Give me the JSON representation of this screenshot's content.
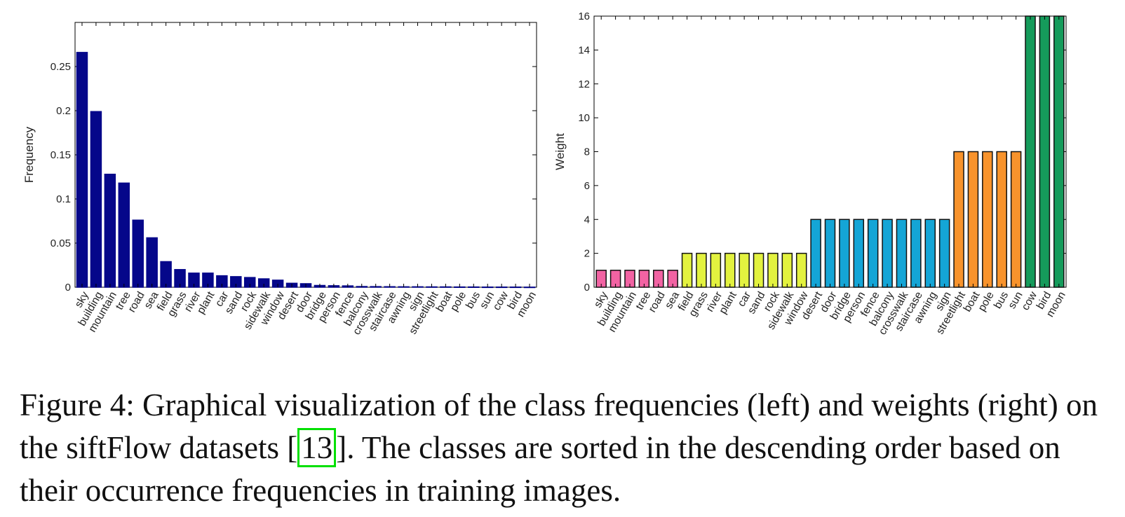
{
  "chart_data": [
    {
      "type": "bar",
      "ylabel": "Frequency",
      "xlabel": "",
      "ylim": [
        0,
        0.3
      ],
      "yticks": [
        0,
        0.05,
        0.1,
        0.15,
        0.2,
        0.25
      ],
      "ytick_labels": [
        "0",
        "0.05",
        "0.1",
        "0.15",
        "0.2",
        "0.25"
      ],
      "categories": [
        "sky",
        "building",
        "mountain",
        "tree",
        "road",
        "sea",
        "field",
        "grass",
        "river",
        "plant",
        "car",
        "sand",
        "rock",
        "sidewalk",
        "window",
        "desert",
        "door",
        "bridge",
        "person",
        "fence",
        "balcony",
        "crosswalk",
        "staircase",
        "awning",
        "sign",
        "streetlight",
        "boat",
        "pole",
        "bus",
        "sun",
        "cow",
        "bird",
        "moon"
      ],
      "values": [
        0.266,
        0.199,
        0.128,
        0.118,
        0.076,
        0.056,
        0.029,
        0.02,
        0.016,
        0.016,
        0.013,
        0.012,
        0.011,
        0.0095,
        0.008,
        0.0045,
        0.004,
        0.002,
        0.0017,
        0.0015,
        0.0008,
        0.0007,
        0.0006,
        0.0005,
        0.0005,
        0.0004,
        0.0004,
        0.0003,
        0.0003,
        0.0002,
        0.0002,
        0.0002,
        0.0001
      ],
      "colors": [
        "#05078a"
      ]
    },
    {
      "type": "bar",
      "ylabel": "Weight",
      "xlabel": "",
      "ylim": [
        0,
        16
      ],
      "yticks": [
        0,
        2,
        4,
        6,
        8,
        10,
        12,
        14,
        16
      ],
      "ytick_labels": [
        "0",
        "2",
        "4",
        "6",
        "8",
        "10",
        "12",
        "14",
        "16"
      ],
      "categories": [
        "sky",
        "building",
        "mountain",
        "tree",
        "road",
        "sea",
        "field",
        "grass",
        "river",
        "plant",
        "car",
        "sand",
        "rock",
        "sidewalk",
        "window",
        "desert",
        "door",
        "bridge",
        "person",
        "fence",
        "balcony",
        "crosswalk",
        "staircase",
        "awning",
        "sign",
        "streetlight",
        "boat",
        "pole",
        "bus",
        "sun",
        "cow",
        "bird",
        "moon"
      ],
      "values": [
        1,
        1,
        1,
        1,
        1,
        1,
        2,
        2,
        2,
        2,
        2,
        2,
        2,
        2,
        2,
        4,
        4,
        4,
        4,
        4,
        4,
        4,
        4,
        4,
        4,
        8,
        8,
        8,
        8,
        8,
        16,
        16,
        16
      ],
      "colors": [
        "#f263a3",
        "#f263a3",
        "#f263a3",
        "#f263a3",
        "#f263a3",
        "#f263a3",
        "#e3f23f",
        "#e3f23f",
        "#e3f23f",
        "#e3f23f",
        "#e3f23f",
        "#e3f23f",
        "#e3f23f",
        "#e3f23f",
        "#e3f23f",
        "#14a5d6",
        "#14a5d6",
        "#14a5d6",
        "#14a5d6",
        "#14a5d6",
        "#14a5d6",
        "#14a5d6",
        "#14a5d6",
        "#14a5d6",
        "#14a5d6",
        "#f8932c",
        "#f8932c",
        "#f8932c",
        "#f8932c",
        "#f8932c",
        "#159b5b",
        "#159b5b",
        "#159b5b"
      ]
    }
  ],
  "caption": {
    "before": "Figure 4: Graphical visualization of the class frequencies (left) and weights (right) on the siftFlow datasets [",
    "citation": "13",
    "after": "]. The classes are sorted in the descending order based on their occurrence frequencies in training images."
  }
}
